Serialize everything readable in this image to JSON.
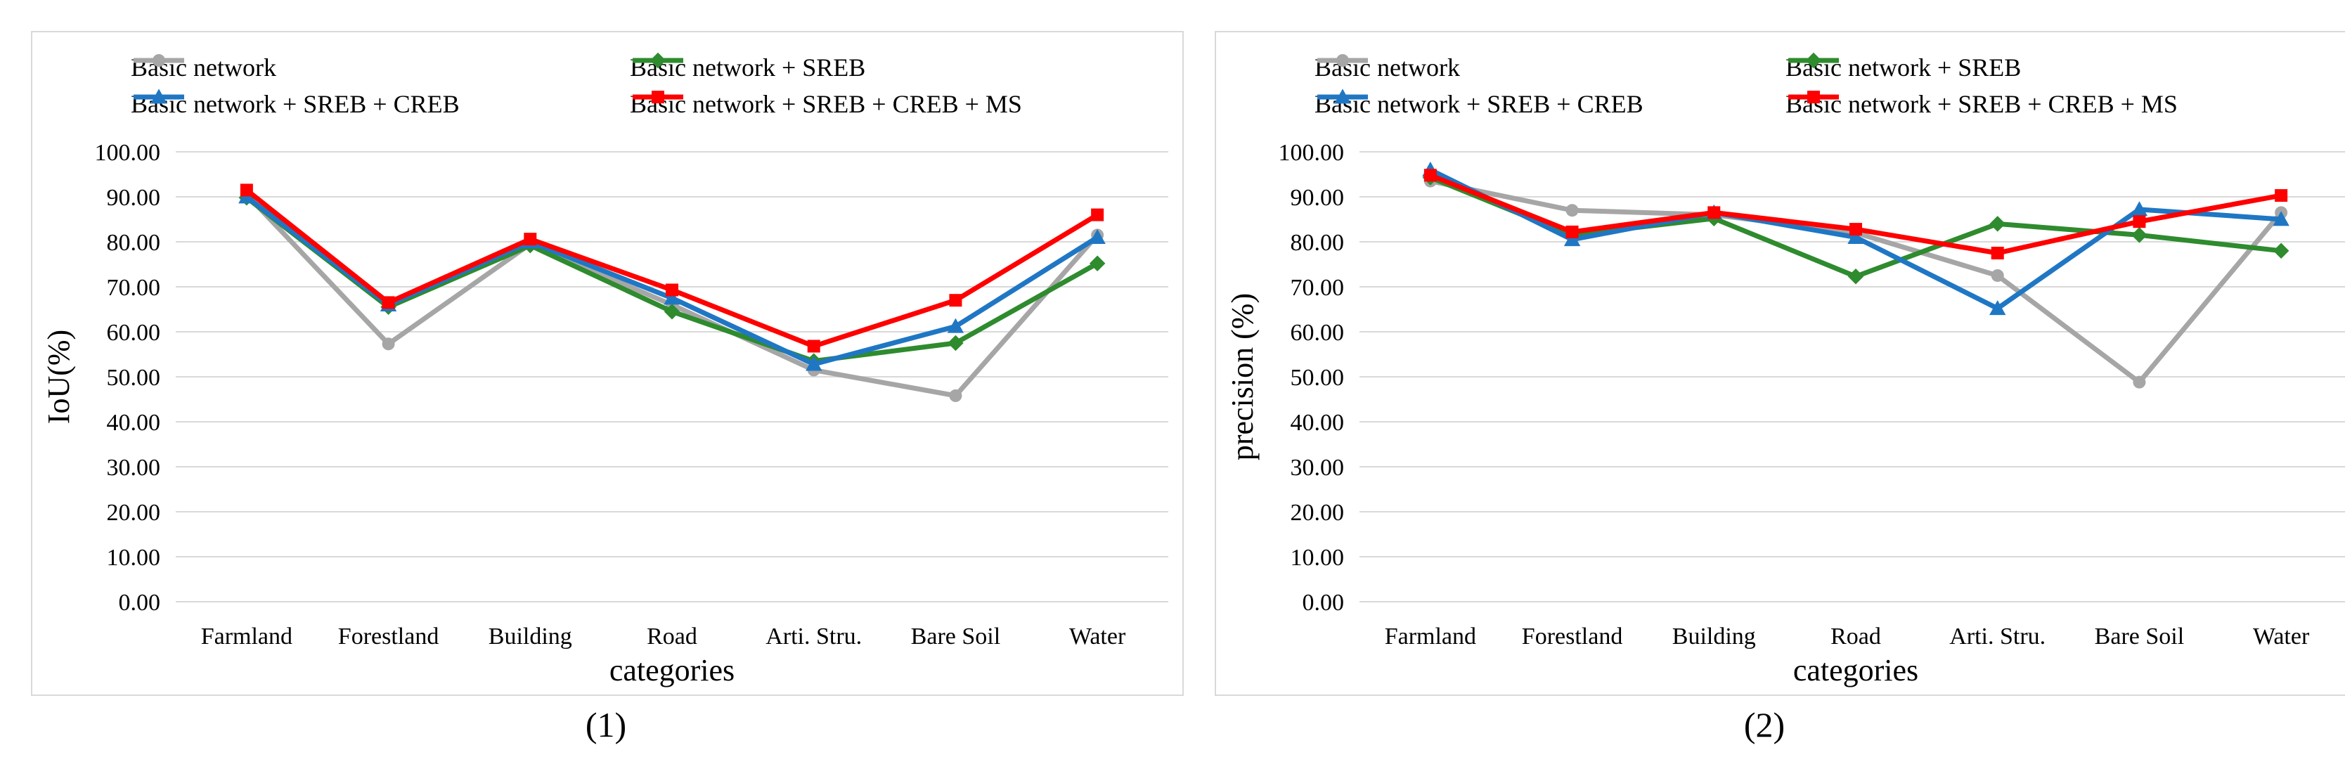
{
  "chart_data": [
    {
      "type": "line",
      "id": "1",
      "caption": "(1)",
      "xlabel": "categories",
      "ylabel": "IoU(%)",
      "ylim": [
        0,
        100
      ],
      "yticks": [
        "0.00",
        "10.00",
        "20.00",
        "30.00",
        "40.00",
        "50.00",
        "60.00",
        "70.00",
        "80.00",
        "90.00",
        "100.00"
      ],
      "grid": true,
      "legend_position": "top",
      "categories": [
        "Farmland",
        "Forestland",
        "Building",
        "Road",
        "Arti. Stru.",
        "Bare Soil",
        "Water"
      ],
      "series": [
        {
          "name": "Basic network",
          "color": "#a6a6a6",
          "marker": "circle",
          "values": [
            90.5,
            57.3,
            79.5,
            66.0,
            51.5,
            45.8,
            81.5
          ]
        },
        {
          "name": "Basic network + SREB",
          "color": "#2e8b2e",
          "marker": "diamond",
          "values": [
            89.8,
            65.5,
            79.2,
            64.5,
            53.5,
            57.5,
            75.2
          ]
        },
        {
          "name": "Basic network + SREB + CREB",
          "color": "#1f77c4",
          "marker": "triangle",
          "values": [
            90.0,
            66.0,
            80.0,
            67.5,
            52.8,
            61.2,
            81.0
          ]
        },
        {
          "name": "Basic network + SREB + CREB + MS",
          "color": "#ff0000",
          "marker": "square",
          "values": [
            91.5,
            66.5,
            80.6,
            69.3,
            56.8,
            67.0,
            86.0
          ]
        }
      ]
    },
    {
      "type": "line",
      "id": "2",
      "caption": "(2)",
      "xlabel": "categories",
      "ylabel": "precision (%)",
      "ylim": [
        0,
        100
      ],
      "yticks": [
        "0.00",
        "10.00",
        "20.00",
        "30.00",
        "40.00",
        "50.00",
        "60.00",
        "70.00",
        "80.00",
        "90.00",
        "100.00"
      ],
      "grid": true,
      "legend_position": "top",
      "categories": [
        "Farmland",
        "Forestland",
        "Building",
        "Road",
        "Arti. Stru.",
        "Bare Soil",
        "Water"
      ],
      "series": [
        {
          "name": "Basic network",
          "color": "#a6a6a6",
          "marker": "circle",
          "values": [
            93.5,
            87.0,
            86.0,
            82.0,
            72.5,
            48.8,
            86.5
          ]
        },
        {
          "name": "Basic network + SREB",
          "color": "#2e8b2e",
          "marker": "diamond",
          "values": [
            94.3,
            81.5,
            85.2,
            72.3,
            84.0,
            81.5,
            78.0
          ]
        },
        {
          "name": "Basic network + SREB + CREB",
          "color": "#1f77c4",
          "marker": "triangle",
          "values": [
            96.0,
            80.5,
            86.5,
            81.0,
            65.2,
            87.2,
            85.0
          ]
        },
        {
          "name": "Basic network + SREB + CREB + MS",
          "color": "#ff0000",
          "marker": "square",
          "values": [
            94.8,
            82.2,
            86.5,
            82.8,
            77.5,
            84.5,
            90.3
          ]
        }
      ]
    }
  ]
}
